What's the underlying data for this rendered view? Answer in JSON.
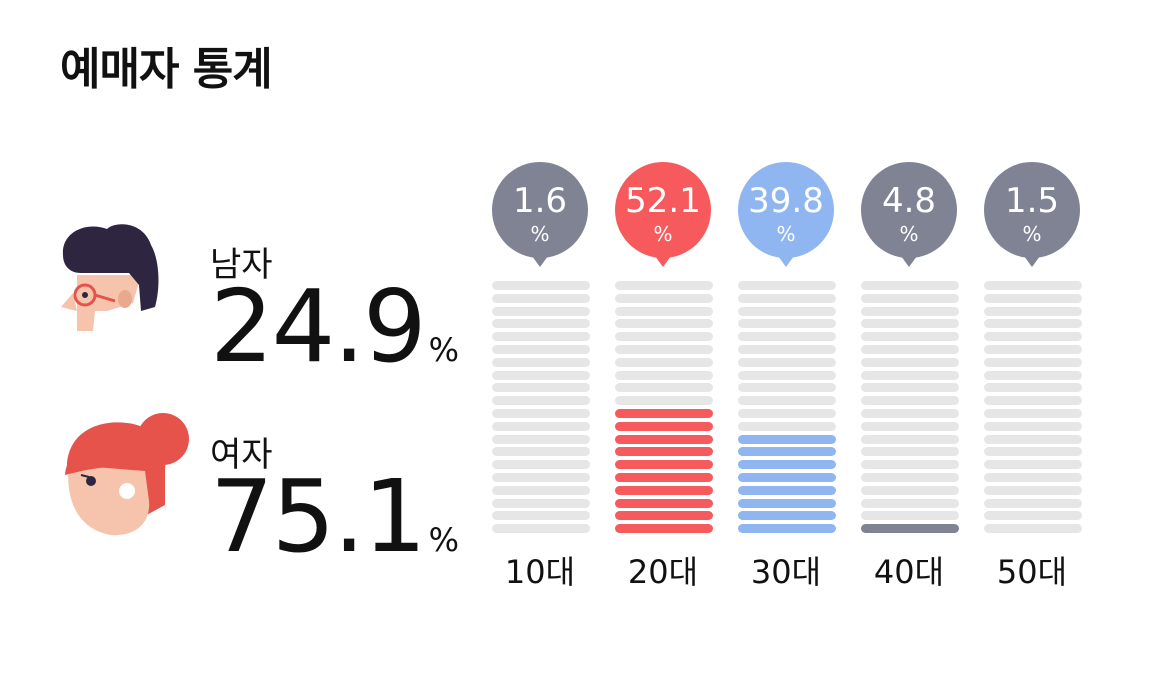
{
  "title": "예매자 통계",
  "gender": {
    "male": {
      "label": "남자",
      "value": "24.9",
      "unit": "%"
    },
    "female": {
      "label": "여자",
      "value": "75.1",
      "unit": "%"
    }
  },
  "colors": {
    "gray": "#7f8394",
    "red": "#f75a5d",
    "blue": "#8fb6f1",
    "track": "#e6e6e6",
    "male_hair": "#2e2540",
    "female_hair": "#e5534b",
    "skin": "#f6c3ac"
  },
  "icons": [
    "male-avatar-icon",
    "female-avatar-icon"
  ],
  "chart_data": {
    "type": "bar",
    "categories": [
      "10대",
      "20대",
      "30대",
      "40대",
      "50대"
    ],
    "values": [
      1.6,
      52.1,
      39.8,
      4.8,
      1.5
    ],
    "value_labels": [
      "1.6",
      "52.1",
      "39.8",
      "4.8",
      "1.5"
    ],
    "unit": "%",
    "colors": [
      "#7f8394",
      "#f75a5d",
      "#8fb6f1",
      "#7f8394",
      "#7f8394"
    ],
    "filled_segments": [
      0,
      10,
      8,
      1,
      0
    ],
    "total_segments": 20,
    "title": "",
    "xlabel": "",
    "ylabel": "",
    "ylim": [
      0,
      100
    ]
  }
}
